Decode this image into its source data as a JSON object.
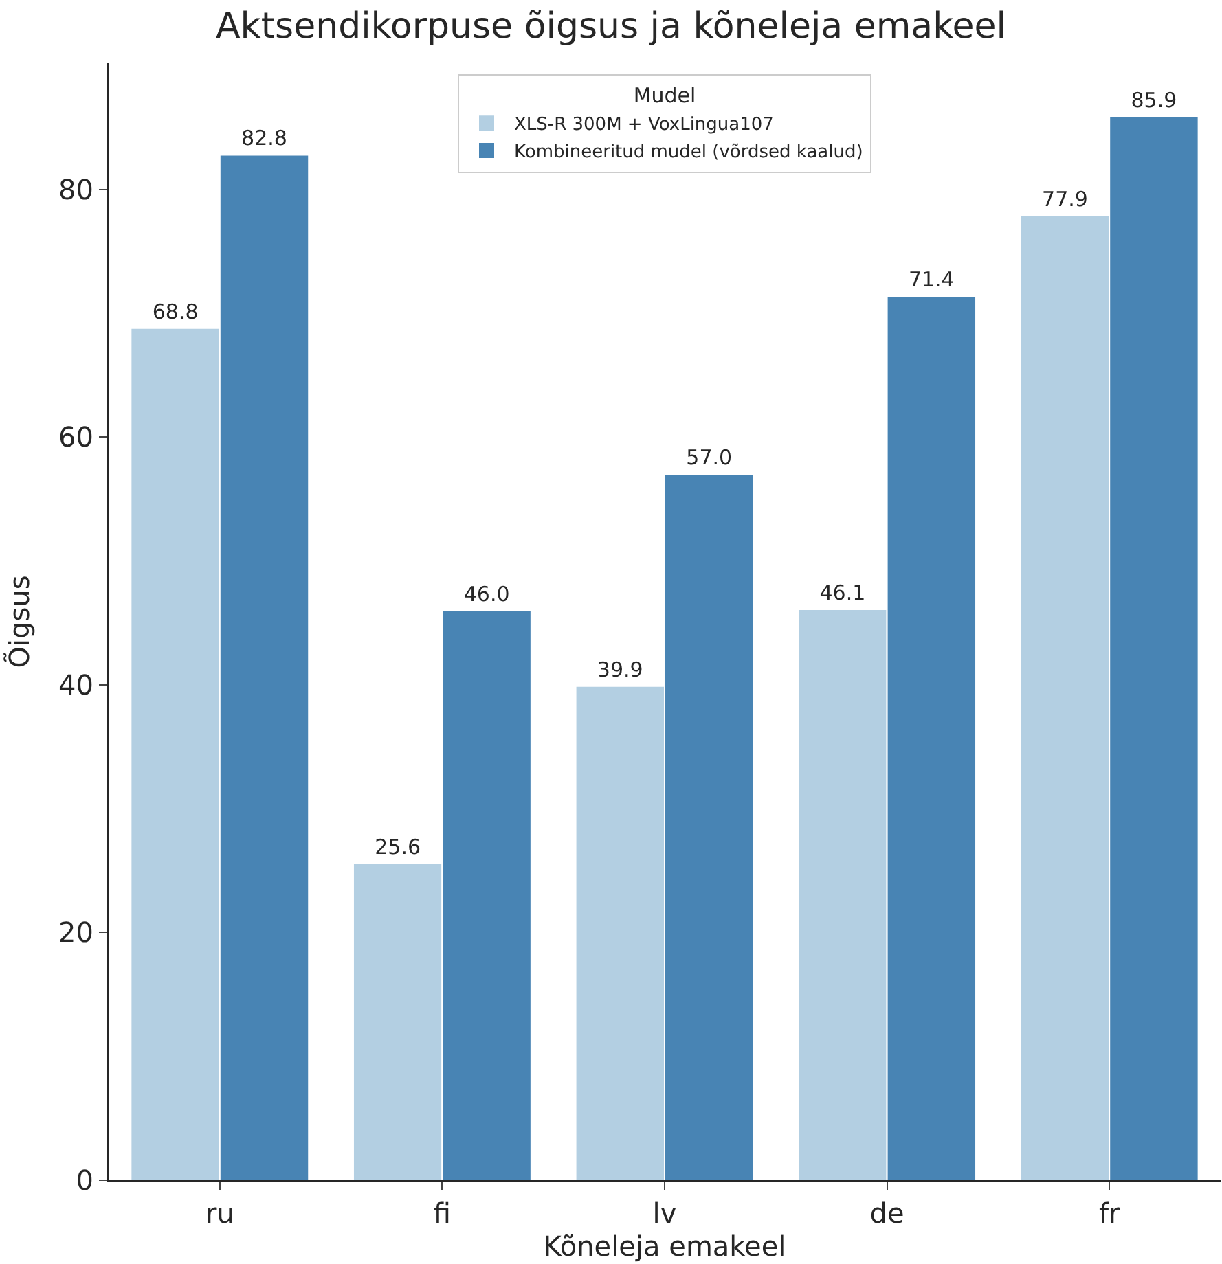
{
  "chart_data": {
    "type": "bar",
    "title": "Aktsendikorpuse õigsus ja kõneleja emakeel",
    "xlabel": "Kõneleja emakeel",
    "ylabel": "Õigsus",
    "legend_title": "Mudel",
    "categories": [
      "ru",
      "fi",
      "lv",
      "de",
      "fr"
    ],
    "series": [
      {
        "name": "XLS-R 300M + VoxLingua107",
        "color": "#b3cfe2",
        "values": [
          68.8,
          25.6,
          39.9,
          46.1,
          77.9
        ],
        "value_labels": [
          "68.8",
          "25.6",
          "39.9",
          "46.1",
          "77.9"
        ]
      },
      {
        "name": "Kombineeritud mudel (võrdsed kaalud)",
        "color": "#4884b4",
        "values": [
          82.8,
          46.0,
          57.0,
          71.4,
          85.9
        ],
        "value_labels": [
          "82.8",
          "46.0",
          "57.0",
          "71.4",
          "85.9"
        ]
      }
    ],
    "ylim": [
      0,
      90.2
    ],
    "yticks": [
      0,
      20,
      40,
      60,
      80
    ],
    "legend": "top"
  }
}
